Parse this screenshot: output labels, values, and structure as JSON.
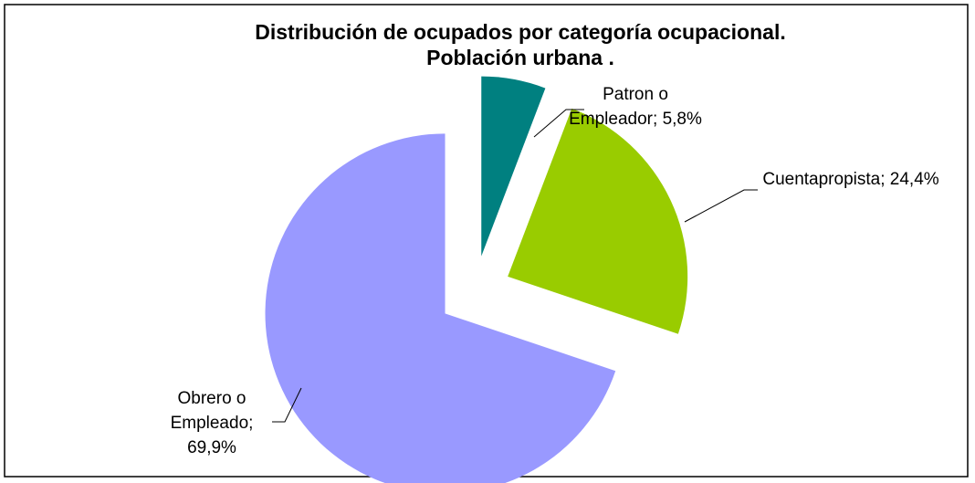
{
  "chart_data": {
    "type": "pie",
    "title": "Distribución de ocupados por categoría ocupacional.",
    "subtitle": "Población urbana .",
    "categories": [
      "Patron o Empleador",
      "Cuentapropista",
      "Obrero o Empleado"
    ],
    "values": [
      5.8,
      24.4,
      69.9
    ],
    "value_labels": [
      "5,8%",
      "24,4%",
      "69,9%"
    ],
    "label_separator": ";",
    "colors": [
      "#008080",
      "#99cc00",
      "#9999ff"
    ]
  }
}
